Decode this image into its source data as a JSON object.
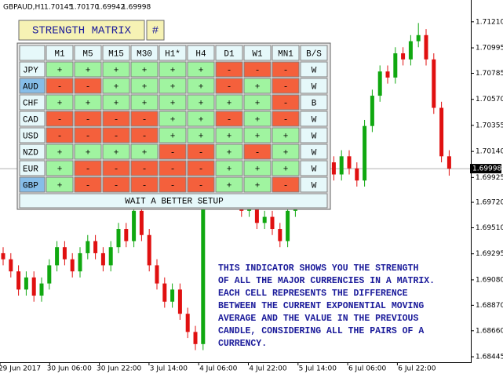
{
  "header": {
    "symbol": "GBPAUD,H1",
    "ohlc": [
      "1.70145",
      "1.70170",
      "1.69942",
      "1.69998"
    ]
  },
  "chart_data": {
    "type": "candlestick",
    "up_color": "#10a810",
    "down_color": "#e01010",
    "ylim": [
      1.684,
      1.7139
    ],
    "yticks": [
      {
        "value": 1.7121,
        "label": "1.71210"
      },
      {
        "value": 1.70995,
        "label": "1.70995"
      },
      {
        "value": 1.70785,
        "label": "1.70785"
      },
      {
        "value": 1.7057,
        "label": "1.70570"
      },
      {
        "value": 1.70355,
        "label": "1.70355"
      },
      {
        "value": 1.7014,
        "label": "1.70140"
      },
      {
        "value": 1.69925,
        "label": "1.69925"
      },
      {
        "value": 1.6972,
        "label": "1.69720"
      },
      {
        "value": 1.6951,
        "label": "1.69510"
      },
      {
        "value": 1.69295,
        "label": "1.69295"
      },
      {
        "value": 1.6908,
        "label": "1.69080"
      },
      {
        "value": 1.6887,
        "label": "1.68870"
      },
      {
        "value": 1.6866,
        "label": "1.68660"
      },
      {
        "value": 1.68445,
        "label": "1.68445"
      }
    ],
    "current_price": {
      "value": 1.69998,
      "label": "1.69998"
    },
    "time_labels": [
      "29 Jun 2017",
      "30 Jun 06:00",
      "30 Jun 22:00",
      "3 Jul 14:00",
      "4 Jul 06:00",
      "4 Jul 22:00",
      "5 Jul 14:00",
      "6 Jul 06:00",
      "6 Jul 22:00"
    ],
    "candles": [
      [
        1.693,
        1.6935,
        1.692,
        1.6925
      ],
      [
        1.6925,
        1.693,
        1.691,
        1.6915
      ],
      [
        1.6915,
        1.692,
        1.6895,
        1.69
      ],
      [
        1.69,
        1.6915,
        1.6895,
        1.691
      ],
      [
        1.691,
        1.6915,
        1.689,
        1.6895
      ],
      [
        1.6895,
        1.691,
        1.689,
        1.6905
      ],
      [
        1.6905,
        1.6925,
        1.69,
        1.692
      ],
      [
        1.692,
        1.694,
        1.6915,
        1.6935
      ],
      [
        1.6935,
        1.694,
        1.692,
        1.6925
      ],
      [
        1.6925,
        1.693,
        1.691,
        1.6915
      ],
      [
        1.6915,
        1.6935,
        1.691,
        1.693
      ],
      [
        1.693,
        1.6945,
        1.6925,
        1.694
      ],
      [
        1.694,
        1.6945,
        1.6925,
        1.693
      ],
      [
        1.693,
        1.6935,
        1.6915,
        1.692
      ],
      [
        1.692,
        1.694,
        1.6915,
        1.6935
      ],
      [
        1.6935,
        1.6955,
        1.693,
        1.695
      ],
      [
        1.695,
        1.6955,
        1.6935,
        1.694
      ],
      [
        1.694,
        1.697,
        1.6935,
        1.6965
      ],
      [
        1.6965,
        1.697,
        1.694,
        1.6945
      ],
      [
        1.6945,
        1.695,
        1.6915,
        1.692
      ],
      [
        1.692,
        1.6925,
        1.69,
        1.6905
      ],
      [
        1.6905,
        1.691,
        1.6885,
        1.689
      ],
      [
        1.689,
        1.6905,
        1.6885,
        1.69
      ],
      [
        1.69,
        1.6905,
        1.6875,
        1.688
      ],
      [
        1.688,
        1.6885,
        1.686,
        1.6865
      ],
      [
        1.6865,
        1.687,
        1.685,
        1.6855
      ],
      [
        1.6855,
        1.6995,
        1.685,
        1.699
      ],
      [
        1.699,
        1.7005,
        1.6985,
        1.7
      ],
      [
        1.7,
        1.7005,
        1.6985,
        1.699
      ],
      [
        1.699,
        1.6995,
        1.697,
        1.6975
      ],
      [
        1.6975,
        1.6985,
        1.697,
        1.698
      ],
      [
        1.698,
        1.6985,
        1.696,
        1.6965
      ],
      [
        1.6965,
        1.6975,
        1.696,
        1.697
      ],
      [
        1.697,
        1.6975,
        1.695,
        1.6955
      ],
      [
        1.6955,
        1.6965,
        1.695,
        1.696
      ],
      [
        1.696,
        1.6965,
        1.6945,
        1.695
      ],
      [
        1.695,
        1.6955,
        1.6935,
        1.694
      ],
      [
        1.694,
        1.697,
        1.6935,
        1.6965
      ],
      [
        1.6965,
        1.698,
        1.696,
        1.6975
      ],
      [
        1.6975,
        1.6995,
        1.697,
        1.699
      ],
      [
        1.699,
        1.6995,
        1.698,
        1.6985
      ],
      [
        1.6985,
        1.7,
        1.698,
        1.6995
      ],
      [
        1.6995,
        1.701,
        1.699,
        1.7005
      ],
      [
        1.7005,
        1.701,
        1.699,
        1.6995
      ],
      [
        1.6995,
        1.7015,
        1.699,
        1.701
      ],
      [
        1.701,
        1.7015,
        1.6995,
        1.7
      ],
      [
        1.7,
        1.7005,
        1.6985,
        1.699
      ],
      [
        1.699,
        1.704,
        1.6985,
        1.7035
      ],
      [
        1.7035,
        1.7065,
        1.703,
        1.706
      ],
      [
        1.706,
        1.7085,
        1.7055,
        1.708
      ],
      [
        1.708,
        1.7085,
        1.707,
        1.7075
      ],
      [
        1.7075,
        1.71,
        1.707,
        1.7095
      ],
      [
        1.7095,
        1.71,
        1.7085,
        1.709
      ],
      [
        1.709,
        1.711,
        1.7085,
        1.7105
      ],
      [
        1.7105,
        1.712,
        1.71,
        1.711
      ],
      [
        1.711,
        1.7115,
        1.7085,
        1.709
      ],
      [
        1.709,
        1.7095,
        1.7045,
        1.705
      ],
      [
        1.705,
        1.7055,
        1.7005,
        1.701
      ],
      [
        1.701,
        1.7015,
        1.6994,
        1.69998
      ]
    ]
  },
  "matrix": {
    "title": "STRENGTH MATRIX",
    "button": "#",
    "columns": [
      "M1",
      "M5",
      "M15",
      "M30",
      "H1*",
      "H4",
      "D1",
      "W1",
      "MN1",
      "B/S"
    ],
    "cell_colors": {
      "+": "#a0f4a0",
      "-": "#f4603c"
    },
    "rows": [
      {
        "currency": "JPY",
        "highlight": false,
        "cells": [
          "+",
          "+",
          "+",
          "+",
          "+",
          "+",
          "-",
          "-",
          "-",
          "W"
        ]
      },
      {
        "currency": "AUD",
        "highlight": true,
        "cells": [
          "-",
          "-",
          "+",
          "+",
          "+",
          "+",
          "-",
          "+",
          "-",
          "W"
        ]
      },
      {
        "currency": "CHF",
        "highlight": false,
        "cells": [
          "+",
          "+",
          "+",
          "+",
          "+",
          "+",
          "+",
          "+",
          "-",
          "B"
        ]
      },
      {
        "currency": "CAD",
        "highlight": false,
        "cells": [
          "-",
          "-",
          "-",
          "-",
          "+",
          "+",
          "-",
          "+",
          "-",
          "W"
        ]
      },
      {
        "currency": "USD",
        "highlight": false,
        "cells": [
          "-",
          "-",
          "-",
          "-",
          "+",
          "+",
          "+",
          "+",
          "+",
          "W"
        ]
      },
      {
        "currency": "NZD",
        "highlight": false,
        "cells": [
          "+",
          "+",
          "+",
          "+",
          "-",
          "-",
          "+",
          "-",
          "+",
          "W"
        ]
      },
      {
        "currency": "EUR",
        "highlight": false,
        "cells": [
          "+",
          "-",
          "-",
          "-",
          "-",
          "-",
          "+",
          "+",
          "+",
          "W"
        ]
      },
      {
        "currency": "GBP",
        "highlight": true,
        "cells": [
          "+",
          "-",
          "-",
          "-",
          "-",
          "-",
          "+",
          "+",
          "-",
          "W"
        ]
      }
    ],
    "message": "WAIT A BETTER SETUP"
  },
  "description": [
    "THIS INDICATOR SHOWS YOU THE STRENGTH",
    "OF ALL THE MAJOR CURRENCIES IN A MATRIX.",
    "EACH CELL REPRESENTS THE DIFFERENCE",
    "BETWEEN THE CURRENT EXPONENTIAL MOVING",
    "AVERAGE AND THE VALUE IN THE PREVIOUS",
    "CANDLE, CONSIDERING ALL THE PAIRS OF A",
    "CURRENCY."
  ]
}
